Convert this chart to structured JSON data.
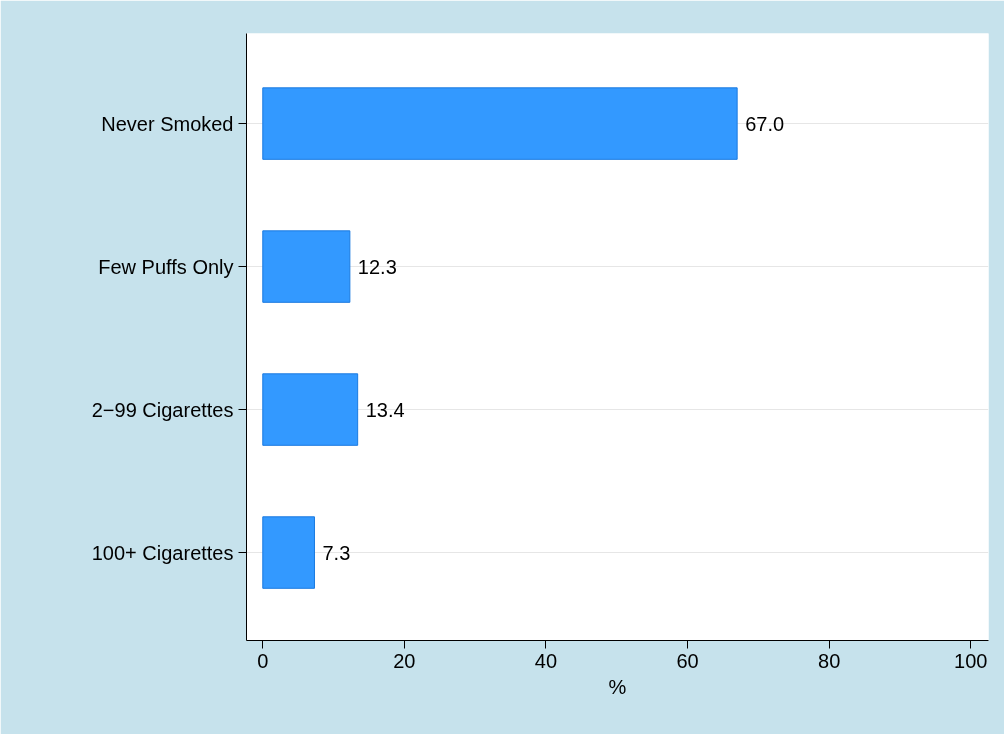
{
  "chart_data": {
    "type": "bar",
    "orientation": "horizontal",
    "xlabel": "%",
    "categories": [
      "Never Smoked",
      "Few Puffs Only",
      "2−99 Cigarettes",
      "100+ Cigarettes"
    ],
    "values": [
      67.0,
      12.3,
      13.4,
      7.3
    ],
    "color": "#3399ff",
    "xlim": [
      -2.3,
      102.5
    ],
    "xticks": [
      0,
      20,
      40,
      60,
      80,
      100
    ],
    "grid": "y",
    "value_labels": [
      "67.0",
      "12.3",
      "13.4",
      "7.3"
    ]
  }
}
